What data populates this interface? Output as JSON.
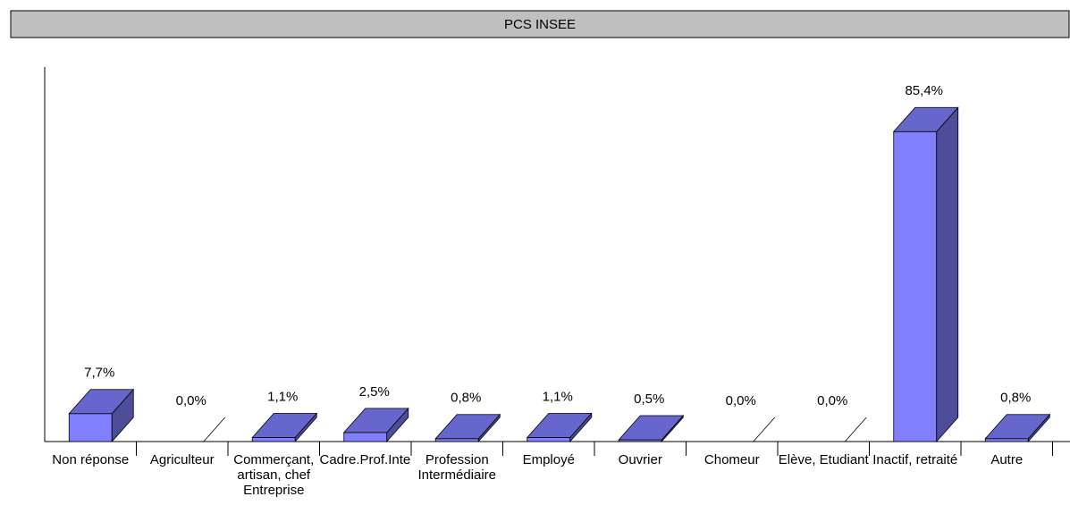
{
  "chart_data": {
    "type": "bar3d",
    "title": "PCS INSEE",
    "categories": [
      "Non réponse",
      "Agriculteur",
      "Commerçant, artisan, chef Entreprise",
      "Cadre.Prof.Intellectuelle.Sup.",
      "Profession Intermédiaire",
      "Employé",
      "Ouvrier",
      "Chomeur",
      "Elève, Etudiant",
      "Inactif, retraité",
      "Autre"
    ],
    "values": [
      7.7,
      0.0,
      1.1,
      2.5,
      0.8,
      1.1,
      0.5,
      0.0,
      0.0,
      85.4,
      0.8
    ],
    "value_labels": [
      "7,7%",
      "0,0%",
      "1,1%",
      "2,5%",
      "0,8%",
      "1,1%",
      "0,5%",
      "0,0%",
      "0,0%",
      "85,4%",
      "0,8%"
    ],
    "color": "#8080ff",
    "ylim": [
      0,
      100
    ]
  }
}
